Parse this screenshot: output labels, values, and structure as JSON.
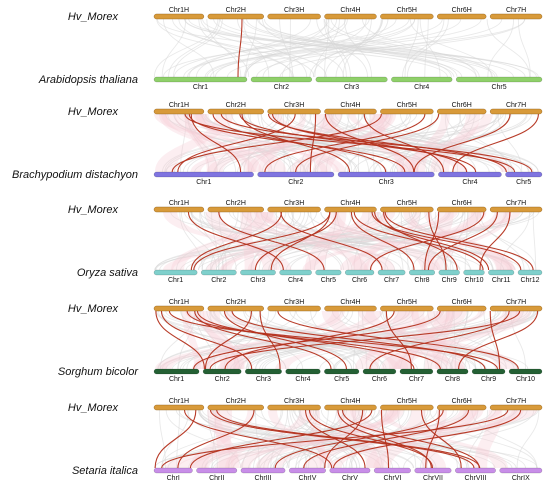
{
  "colors": {
    "barley": "#d89a3a",
    "arabidopsis": "#8fd06a",
    "brachypodium": "#7f74e0",
    "oryza": "#7fd0cc",
    "sorghum": "#246034",
    "setaria": "#c88ee8",
    "background_link": "#d7d7d7",
    "highlight_link": "#b4321e",
    "pink_haze": "#f5cfd6"
  },
  "panels": [
    {
      "top_species": "Hv_Morex",
      "top_chromosomes": [
        "Chr1H",
        "Chr2H",
        "Chr3H",
        "Chr4H",
        "Chr5H",
        "Chr6H",
        "Chr7H"
      ],
      "bottom_species": "Arabidopsis thaliana",
      "bottom_color": "arabidopsis",
      "bottom_chromosomes": [
        "Chr1",
        "Chr2",
        "Chr3",
        "Chr4",
        "Chr5"
      ]
    },
    {
      "top_species": "Hv_Morex",
      "top_chromosomes": [
        "Chr1H",
        "Chr2H",
        "Chr3H",
        "Chr4H",
        "Chr5H",
        "Chr6H",
        "Chr7H"
      ],
      "bottom_species": "Brachypodium distachyon",
      "bottom_color": "brachypodium",
      "bottom_chromosomes": [
        "Chr1",
        "Chr2",
        "Chr3",
        "Chr4",
        "Chr5"
      ]
    },
    {
      "top_species": "Hv_Morex",
      "top_chromosomes": [
        "Chr1H",
        "Chr2H",
        "Chr3H",
        "Chr4H",
        "Chr5H",
        "Chr6H",
        "Chr7H"
      ],
      "bottom_species": "Oryza sativa",
      "bottom_color": "oryza",
      "bottom_chromosomes": [
        "Chr1",
        "Chr2",
        "Chr3",
        "Chr4",
        "Chr5",
        "Chr6",
        "Chr7",
        "Chr8",
        "Chr9",
        "Chr10",
        "Chr11",
        "Chr12"
      ]
    },
    {
      "top_species": "Hv_Morex",
      "top_chromosomes": [
        "Chr1H",
        "Chr2H",
        "Chr3H",
        "Chr4H",
        "Chr5H",
        "Chr6H",
        "Chr7H"
      ],
      "bottom_species": "Sorghum bicolor",
      "bottom_color": "sorghum",
      "bottom_chromosomes": [
        "Chr1",
        "Chr2",
        "Chr3",
        "Chr4",
        "Chr5",
        "Chr6",
        "Chr7",
        "Chr8",
        "Chr9",
        "Chr10"
      ]
    },
    {
      "top_species": "Hv_Morex",
      "top_chromosomes": [
        "Chr1H",
        "Chr2H",
        "Chr3H",
        "Chr4H",
        "Chr5H",
        "Chr6H",
        "Chr7H"
      ],
      "bottom_species": "Setaria italica",
      "bottom_color": "setaria",
      "bottom_chromosomes": [
        "ChrI",
        "ChrII",
        "ChrIII",
        "ChrIV",
        "ChrV",
        "ChrVI",
        "ChrVII",
        "ChrVIII",
        "ChrIX"
      ]
    }
  ]
}
